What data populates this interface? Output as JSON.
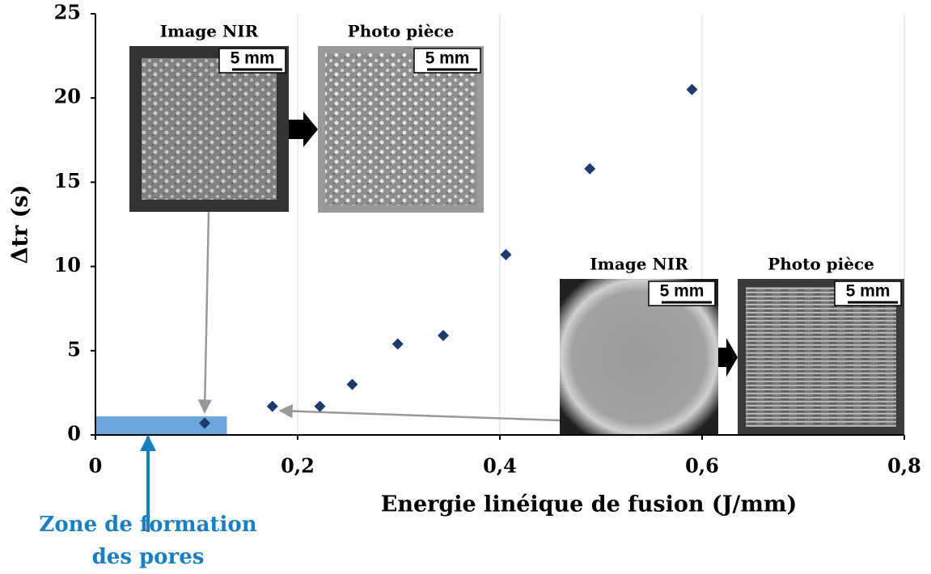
{
  "chart_data": {
    "type": "scatter",
    "x_label": "Energie linéique de fusion (J/mm)",
    "y_label": "Δtr (s)",
    "x": [
      0.108,
      0.175,
      0.222,
      0.254,
      0.299,
      0.344,
      0.406,
      0.489,
      0.59
    ],
    "values": [
      0.7,
      1.7,
      1.7,
      3.0,
      5.4,
      5.9,
      10.7,
      15.8,
      20.5
    ],
    "color": "#1f3a6e",
    "xlim": [
      0,
      0.8
    ],
    "xticks": [
      0,
      {
        "value": 0.2,
        "label": "0,2"
      },
      {
        "value": 0.4,
        "label": "0,4"
      },
      {
        "value": 0.6,
        "label": "0,6"
      },
      {
        "value": 0.8,
        "label": "0,8"
      }
    ],
    "ylim": [
      0,
      25
    ],
    "yticks": [
      0,
      5,
      10,
      15,
      20,
      25
    ],
    "grid": "x",
    "pore_zone": {
      "xlim": [
        0,
        0.13
      ],
      "ylim": [
        0,
        1.1
      ],
      "color": "#6aa6dc"
    },
    "annotation": [
      "Zone de formation",
      "des pores"
    ],
    "annotation_color": "#1a7fc1",
    "insets": [
      {
        "labels": [
          "Image NIR",
          "Photo pièce"
        ],
        "scales": [
          "5 mm",
          "5 mm"
        ]
      },
      {
        "labels": [
          "Image NIR",
          "Photo pièce"
        ],
        "scales": [
          "5 mm",
          "5 mm"
        ]
      }
    ]
  }
}
